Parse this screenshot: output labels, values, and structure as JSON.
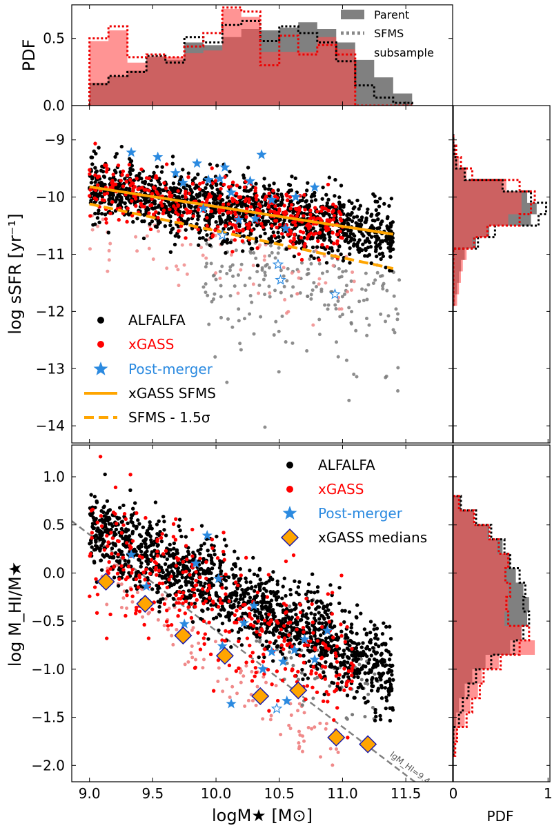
{
  "chart_data": [
    {
      "panel": "top-histogram",
      "type": "histogram",
      "ylabel": "PDF",
      "xlim": [
        8.86,
        11.87
      ],
      "ylim": [
        0,
        0.75
      ],
      "yticks": [
        {
          "v": 0.0,
          "label": "0.0"
        },
        {
          "v": 0.5,
          "label": "0.5"
        }
      ],
      "bin_edges": [
        9.0,
        9.15,
        9.3,
        9.45,
        9.6,
        9.75,
        9.9,
        10.05,
        10.2,
        10.35,
        10.5,
        10.65,
        10.8,
        10.95,
        11.1,
        11.25,
        11.4,
        11.55
      ],
      "series": [
        {
          "name": "ALFALFA parent",
          "style": "filled-gray",
          "values": [
            0.17,
            0.22,
            0.26,
            0.36,
            0.34,
            0.47,
            0.45,
            0.51,
            0.57,
            0.56,
            0.58,
            0.62,
            0.57,
            0.47,
            0.34,
            0.21,
            0.09
          ]
        },
        {
          "name": "xGASS parent",
          "style": "filled-red",
          "values": [
            0.48,
            0.56,
            0.32,
            0.37,
            0.36,
            0.39,
            0.41,
            0.72,
            0.66,
            0.4,
            0.4,
            0.4,
            0.51,
            0.42,
            0.0,
            0.0,
            0.0
          ]
        },
        {
          "name": "ALFALFA SFMS subsample",
          "style": "dotted-black",
          "values": [
            0.16,
            0.22,
            0.25,
            0.37,
            0.32,
            0.51,
            0.47,
            0.6,
            0.63,
            0.48,
            0.59,
            0.54,
            0.47,
            0.33,
            0.15,
            0.06,
            0.02
          ]
        },
        {
          "name": "xGASS SFMS subsample",
          "style": "dotted-red",
          "values": [
            0.5,
            0.59,
            0.36,
            0.38,
            0.36,
            0.44,
            0.54,
            0.73,
            0.7,
            0.3,
            0.52,
            0.38,
            0.45,
            0.38,
            0.0,
            0.0,
            0.0
          ]
        }
      ],
      "legend": {
        "location": "top-right",
        "entries": [
          "Parent",
          "SFMS",
          " subsample"
        ]
      }
    },
    {
      "panel": "ssfr-scatter",
      "type": "scatter",
      "ylabel": "log sSFR [yr⁻¹]",
      "xlim": [
        8.86,
        11.87
      ],
      "ylim": [
        -14.3,
        -8.4
      ],
      "yticks": [
        {
          "v": -9,
          "label": "−9"
        },
        {
          "v": -10,
          "label": "−10"
        },
        {
          "v": -11,
          "label": "−11"
        },
        {
          "v": -12,
          "label": "−12"
        },
        {
          "v": -13,
          "label": "−13"
        },
        {
          "v": -14,
          "label": "−14"
        }
      ],
      "sfms_line": {
        "name": "xGASS SFMS",
        "x": [
          9.0,
          11.4
        ],
        "y": [
          -9.82,
          -10.65
        ]
      },
      "offset_line": {
        "name": "SFMS - 1.5σ",
        "x": [
          9.0,
          11.4
        ],
        "y": [
          -10.12,
          -11.25
        ]
      },
      "cloud": {
        "xmin": 9.0,
        "xmax": 11.4,
        "y_at_xmin": -9.82,
        "y_at_xmax": -10.65,
        "scatter": 0.28,
        "alfalfa_count": 1400,
        "xgass_count": 420
      },
      "quenched_alfalfa_count": 190,
      "quenched_xgass_count": 80,
      "postmerger": [
        {
          "x": 9.33,
          "y": -9.22,
          "filled": true
        },
        {
          "x": 9.54,
          "y": -9.3,
          "filled": true
        },
        {
          "x": 9.68,
          "y": -9.58,
          "filled": true
        },
        {
          "x": 9.74,
          "y": -9.75,
          "filled": true
        },
        {
          "x": 9.85,
          "y": -9.41,
          "filled": true
        },
        {
          "x": 9.9,
          "y": -10.2,
          "filled": true
        },
        {
          "x": 9.94,
          "y": -9.7,
          "filled": true
        },
        {
          "x": 10.03,
          "y": -9.68,
          "filled": true
        },
        {
          "x": 10.07,
          "y": -9.48,
          "filled": true
        },
        {
          "x": 10.12,
          "y": -9.92,
          "filled": true
        },
        {
          "x": 10.18,
          "y": -10.4,
          "filled": true
        },
        {
          "x": 10.27,
          "y": -9.72,
          "filled": true
        },
        {
          "x": 10.31,
          "y": -10.38,
          "filled": true
        },
        {
          "x": 10.36,
          "y": -9.26,
          "filled": true
        },
        {
          "x": 10.44,
          "y": -10.05,
          "filled": true
        },
        {
          "x": 10.55,
          "y": -10.55,
          "filled": true
        },
        {
          "x": 10.63,
          "y": -10.0,
          "filled": true
        },
        {
          "x": 10.78,
          "y": -9.83,
          "filled": true
        },
        {
          "x": 10.05,
          "y": -10.67,
          "filled": false
        },
        {
          "x": 10.49,
          "y": -11.18,
          "filled": false
        },
        {
          "x": 10.51,
          "y": -11.45,
          "filled": false
        },
        {
          "x": 10.94,
          "y": -11.7,
          "filled": false
        }
      ],
      "legend": {
        "location": "lower-left",
        "entries": [
          {
            "label": "ALFALFA",
            "color": "#000000"
          },
          {
            "label": "xGASS",
            "color": "#ff0000"
          },
          {
            "label": "Post-merger",
            "color": "#2b8ae0"
          },
          {
            "label": "xGASS SFMS",
            "color": "#000000"
          },
          {
            "label": "SFMS - 1.5σ",
            "color": "#000000"
          }
        ]
      }
    },
    {
      "panel": "ssfr-pdf",
      "type": "histogram",
      "orientation": "horizontal",
      "xlim": [
        0,
        1.02
      ],
      "ylim": [
        -14.3,
        -8.4
      ],
      "bin_edges": [
        -11.9,
        -11.7,
        -11.5,
        -11.3,
        -11.1,
        -10.9,
        -10.7,
        -10.5,
        -10.3,
        -10.1,
        -9.9,
        -9.7,
        -9.5,
        -9.3,
        -9.1,
        -8.9
      ],
      "series": [
        {
          "name": "ALFALFA parent",
          "style": "filled-gray",
          "values": [
            0.02,
            0.04,
            0.06,
            0.08,
            0.12,
            0.24,
            0.38,
            0.82,
            0.88,
            0.78,
            0.52,
            0.12,
            0.04,
            0.02,
            0.0
          ]
        },
        {
          "name": "xGASS parent",
          "style": "filled-red",
          "values": [
            0.04,
            0.06,
            0.08,
            0.1,
            0.14,
            0.2,
            0.36,
            0.58,
            0.72,
            0.72,
            0.56,
            0.14,
            0.06,
            0.02,
            0.0
          ]
        },
        {
          "name": "ALFALFA SFMS subsample",
          "style": "dotted-black",
          "values": [
            0.0,
            0.0,
            0.0,
            0.0,
            0.0,
            0.26,
            0.44,
            0.9,
            0.98,
            0.82,
            0.52,
            0.12,
            0.03,
            0.01,
            0.0
          ]
        },
        {
          "name": "xGASS SFMS subsample",
          "style": "dotted-red",
          "values": [
            0.0,
            0.0,
            0.0,
            0.0,
            0.0,
            0.22,
            0.36,
            0.7,
            0.82,
            0.86,
            0.7,
            0.2,
            0.08,
            0.03,
            0.0
          ]
        }
      ]
    },
    {
      "panel": "hi-fraction-scatter",
      "type": "scatter",
      "xlabel": "logM★ [M⊙]",
      "ylabel": "log M_HI/M★",
      "xlim": [
        8.86,
        11.87
      ],
      "ylim": [
        -2.17,
        1.33
      ],
      "xticks": [
        {
          "v": 9.0,
          "label": "9.0"
        },
        {
          "v": 9.5,
          "label": "9.5"
        },
        {
          "v": 10.0,
          "label": "10.0"
        },
        {
          "v": 10.5,
          "label": "10.5"
        },
        {
          "v": 11.0,
          "label": "11.0"
        },
        {
          "v": 11.5,
          "label": "11.5"
        }
      ],
      "yticks": [
        {
          "v": 1.0,
          "label": "1.0"
        },
        {
          "v": 0.5,
          "label": "0.5"
        },
        {
          "v": 0.0,
          "label": "0.0"
        },
        {
          "v": -0.5,
          "label": "−0.5"
        },
        {
          "v": -1.0,
          "label": "−1.0"
        },
        {
          "v": -1.5,
          "label": "−1.5"
        },
        {
          "v": -2.0,
          "label": "−2.0"
        }
      ],
      "limit_line": {
        "label": "lgM_HI=9.4",
        "x": [
          8.86,
          11.65
        ],
        "y": [
          0.54,
          -2.25
        ]
      },
      "cloud": {
        "xmin": 9.0,
        "xmax": 11.4,
        "y_at_xmin": 0.5,
        "y_at_xmax": -1.05,
        "scatter": 0.22,
        "alfalfa_count": 1500,
        "xgass_count": 380
      },
      "xgass_medians": [
        {
          "x": 9.13,
          "y": -0.09
        },
        {
          "x": 9.44,
          "y": -0.32
        },
        {
          "x": 9.74,
          "y": -0.65
        },
        {
          "x": 10.07,
          "y": -0.86
        },
        {
          "x": 10.35,
          "y": -1.28
        },
        {
          "x": 10.65,
          "y": -1.22
        },
        {
          "x": 10.95,
          "y": -1.71
        },
        {
          "x": 11.2,
          "y": -1.78
        }
      ],
      "postmerger": [
        {
          "x": 9.33,
          "y": 0.19,
          "filled": true
        },
        {
          "x": 9.45,
          "y": -0.14,
          "filled": true
        },
        {
          "x": 9.75,
          "y": -0.53,
          "filled": true
        },
        {
          "x": 9.84,
          "y": 0.1,
          "filled": true
        },
        {
          "x": 9.93,
          "y": 0.39,
          "filled": true
        },
        {
          "x": 10.02,
          "y": -0.06,
          "filled": true
        },
        {
          "x": 10.05,
          "y": -0.76,
          "filled": true
        },
        {
          "x": 10.12,
          "y": -1.36,
          "filled": true
        },
        {
          "x": 10.22,
          "y": -0.52,
          "filled": true
        },
        {
          "x": 10.3,
          "y": -0.34,
          "filled": true
        },
        {
          "x": 10.37,
          "y": -1.0,
          "filled": true
        },
        {
          "x": 10.44,
          "y": -0.82,
          "filled": true
        },
        {
          "x": 10.53,
          "y": -0.92,
          "filled": true
        },
        {
          "x": 10.56,
          "y": -1.33,
          "filled": true
        },
        {
          "x": 10.62,
          "y": -0.8,
          "filled": true
        },
        {
          "x": 10.7,
          "y": -0.69,
          "filled": true
        },
        {
          "x": 10.78,
          "y": -0.9,
          "filled": true
        },
        {
          "x": 10.88,
          "y": -0.6,
          "filled": true
        },
        {
          "x": 10.48,
          "y": -1.41,
          "filled": false
        }
      ],
      "legend": {
        "location": "top-right",
        "entries": [
          {
            "label": "ALFALFA",
            "color": "#000000"
          },
          {
            "label": "xGASS",
            "color": "#ff0000"
          },
          {
            "label": "Post-merger",
            "color": "#2b8ae0"
          },
          {
            "label": "xGASS medians",
            "color": "#000000"
          }
        ]
      }
    },
    {
      "panel": "hi-fraction-pdf",
      "type": "histogram",
      "orientation": "horizontal",
      "xlabel": "PDF",
      "xlim": [
        0,
        1.02
      ],
      "ylim": [
        -2.17,
        1.33
      ],
      "xticks": [
        {
          "v": 0,
          "label": "0"
        },
        {
          "v": 1,
          "label": "1"
        }
      ],
      "bin_edges": [
        -1.9,
        -1.75,
        -1.6,
        -1.45,
        -1.3,
        -1.15,
        -1.0,
        -0.85,
        -0.7,
        -0.55,
        -0.4,
        -0.25,
        -0.1,
        0.05,
        0.2,
        0.35,
        0.5,
        0.65,
        0.8
      ],
      "series": [
        {
          "name": "ALFALFA parent",
          "style": "filled-gray",
          "values": [
            0.0,
            0.01,
            0.03,
            0.06,
            0.12,
            0.2,
            0.34,
            0.6,
            0.72,
            0.78,
            0.8,
            0.74,
            0.66,
            0.6,
            0.52,
            0.38,
            0.22,
            0.08
          ]
        },
        {
          "name": "xGASS parent",
          "style": "filled-red",
          "values": [
            0.02,
            0.04,
            0.12,
            0.18,
            0.26,
            0.3,
            0.48,
            0.86,
            0.72,
            0.54,
            0.58,
            0.58,
            0.54,
            0.58,
            0.46,
            0.36,
            0.22,
            0.06
          ]
        },
        {
          "name": "ALFALFA SFMS subsample",
          "style": "dotted-black",
          "values": [
            0.0,
            0.0,
            0.06,
            0.1,
            0.16,
            0.24,
            0.4,
            0.64,
            0.74,
            0.8,
            0.74,
            0.76,
            0.7,
            0.6,
            0.54,
            0.4,
            0.24,
            0.08
          ]
        },
        {
          "name": "xGASS SFMS subsample",
          "style": "dotted-red",
          "values": [
            0.02,
            0.04,
            0.14,
            0.2,
            0.28,
            0.32,
            0.5,
            0.7,
            0.8,
            0.58,
            0.56,
            0.6,
            0.55,
            0.58,
            0.48,
            0.38,
            0.22,
            0.06
          ]
        }
      ]
    }
  ],
  "colors": {
    "alfalfa": "#000000",
    "alfalfa_faint": "#7a7a7a",
    "xgass": "#ff0000",
    "xgass_faint": "#f08a8a",
    "postmerger": "#2b8ae0",
    "sfms": "#ffa500",
    "median_fill": "#ffa500",
    "median_edge": "#1a1aaa",
    "hist_gray": "#808080",
    "hist_red": "#ff4d4d"
  }
}
